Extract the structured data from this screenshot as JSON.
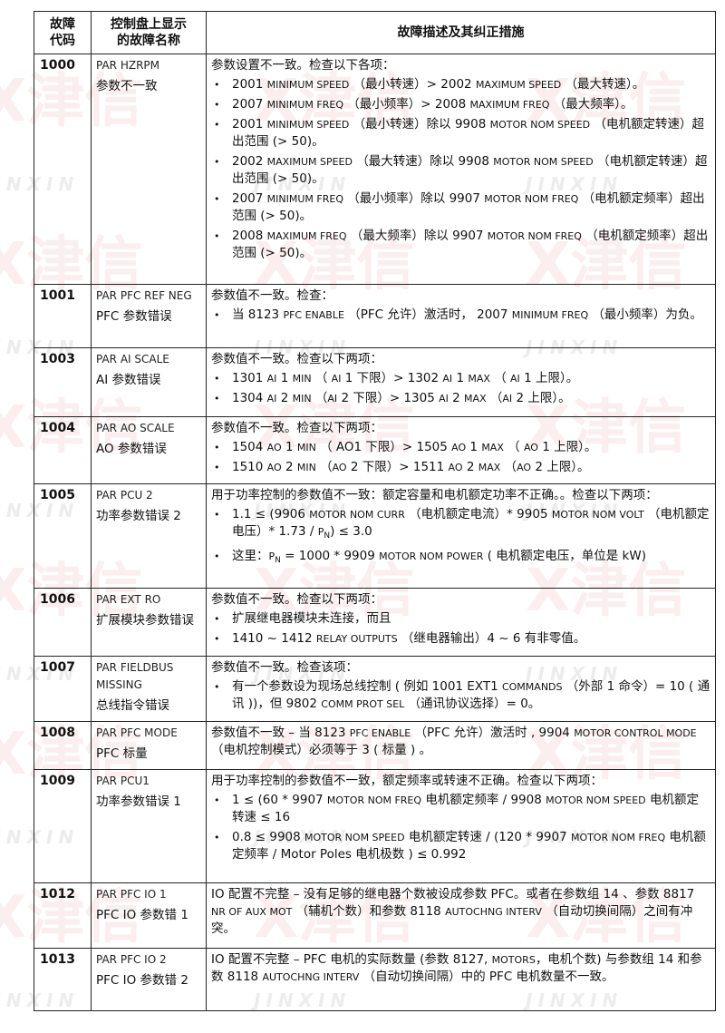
{
  "watermark": {
    "logo_text": "X津信",
    "logo_subtext": "JINXIN"
  },
  "header": {
    "col_code": "故障\n代码",
    "col_name": "控制盘上显示\n的故障名称",
    "col_desc": "故障描述及其纠正措施"
  },
  "rows": [
    {
      "code": "1000",
      "name_en": "PAR HZRPM",
      "name_cn": "参数不一致",
      "intro": "参数设置不一致。检查以下各项：",
      "bullets": [
        "2001 MINIMUM SPEED （最小转速）> 2002 MAXIMUM SPEED （最大转速）。",
        "2007 MINIMUM FREQ （最小频率）> 2008 MAXIMUM FREQ （最大频率）。",
        "2001 MINIMUM SPEED （最小转速）除以 9908 MOTOR NOM SPEED （电机额定转速）超出范围 (> 50)。",
        "2002 MAXIMUM SPEED （最大转速）除以 9908 MOTOR NOM SPEED （电机额定转速）超出范围 (> 50)。",
        "2007 MINIMUM FREQ （最小频率）除以 9907 MOTOR NOM FREQ （电机额定频率）超出范围 (> 50)。",
        "2008 MAXIMUM FREQ （最大频率）除以 9907 MOTOR NOM FREQ （电机额定频率）超出范围 (> 50)。"
      ]
    },
    {
      "code": "1001",
      "name_en": "PAR PFC REF NEG",
      "name_cn": "PFC 参数错误",
      "intro": "参数值不一致。检查：",
      "bullets": [
        "当 8123 PFC ENABLE （PFC 允许）激活时， 2007 MINIMUM FREQ （最小频率）为负。"
      ]
    },
    {
      "code": "1003",
      "name_en": "PAR AI SCALE",
      "name_cn": "AI 参数错误",
      "intro": "参数值不一致。检查以下两项：",
      "bullets": [
        "1301 AI 1 MIN （ AI 1 下限）> 1302 AI 1 MAX （ AI 1 上限）。",
        "1304 AI 2 MIN （AI 2 下限）> 1305 AI 2 MAX （AI 2 上限）。"
      ]
    },
    {
      "code": "1004",
      "name_en": "PAR AO SCALE",
      "name_cn": "AO 参数错误",
      "intro": "参数值不一致。检查以下两项：",
      "bullets": [
        "1504 AO 1 MIN （ AO1 下限）> 1505 AO 1 MAX （ AO 1 上限）。",
        "1510 AO 2 MIN （AO 2 下限）> 1511 AO 2 MAX （AO 2 上限）。"
      ]
    },
    {
      "code": "1005",
      "name_en": "PAR PCU 2",
      "name_cn": "功率参数错误 2",
      "intro": "用于功率控制的参数值不一致：额定容量和电机额定功率不正确。。检查以下两项：",
      "bullets": [
        "1.1 ≤ (9906 MOTOR NOM CURR （电机额定电流）* 9905 MOTOR NOM VOLT （电机额定电压）* 1.73 / PN) ≤ 3.0",
        "这里：PN = 1000 * 9909 MOTOR NOM POWER ( 电机额定电压，单位是 kW)"
      ]
    },
    {
      "code": "1006",
      "name_en": "PAR EXT RO",
      "name_cn": "扩展模块参数错误",
      "intro": "参数值不一致。检查以下两项：",
      "bullets": [
        "扩展继电器模块未连接，而且",
        "1410 ~ 1412 RELAY OUTPUTS （继电器输出）4 ~ 6 有非零值。"
      ]
    },
    {
      "code": "1007",
      "name_en": "PAR FIELDBUS MISSING",
      "name_cn": "总线指令错误",
      "intro": "参数值不一致。检查该项：",
      "bullets": [
        "有一个参数设为现场总线控制 ( 例如 1001 EXT1 COMMANDS （外部 1 命令）= 10 ( 通讯 ))，但 9802 COMM PROT SEL （通讯协议选择）= 0。"
      ]
    },
    {
      "code": "1008",
      "name_en": "PAR PFC MODE",
      "name_cn": "PFC 标量",
      "intro": "参数值不一致 – 当 8123 PFC ENABLE （PFC 允许）激活时 , 9904 MOTOR CONTROL MODE （电机控制模式）必须等于 3 ( 标量 ) 。",
      "bullets": []
    },
    {
      "code": "1009",
      "name_en": "PAR PCU1",
      "name_cn": "功率参数错误 1",
      "intro": "用于功率控制的参数值不一致，额定频率或转速不正确。检查以下两项：",
      "bullets": [
        "1 ≤ (60 * 9907 MOTOR NOM FREQ 电机额定频率 / 9908 MOTOR NOM SPEED 电机额定转速 ≤ 16",
        "0.8 ≤ 9908 MOTOR NOM SPEED 电机额定转速 / (120 * 9907 MOTOR NOM FREQ 电机额定频率 / Motor Poles 电机极数 ) ≤ 0.992"
      ]
    },
    {
      "code": "1012",
      "name_en": "PAR PFC IO 1",
      "name_cn": "PFC IO 参数错 1",
      "intro": "IO 配置不完整 – 没有足够的继电器个数被设成参数 PFC。或者在参数组 14 、参数 8817 NR OF AUX MOT （辅机个数）和参数 8118 AUTOCHNG INTERV （自动切换间隔）之间有冲突。",
      "bullets": []
    },
    {
      "code": "1013",
      "name_en": "PAR PFC IO 2",
      "name_cn": "PFC IO 参数错 2",
      "intro": "IO 配置不完整 – PFC 电机的实际数量 (参数 8127, MOTORS，电机个数) 与参数组 14 和参数 8118 AUTOCHNG INTERV （自动切换间隔）中的 PFC 电机数量不一致。",
      "bullets": []
    }
  ]
}
